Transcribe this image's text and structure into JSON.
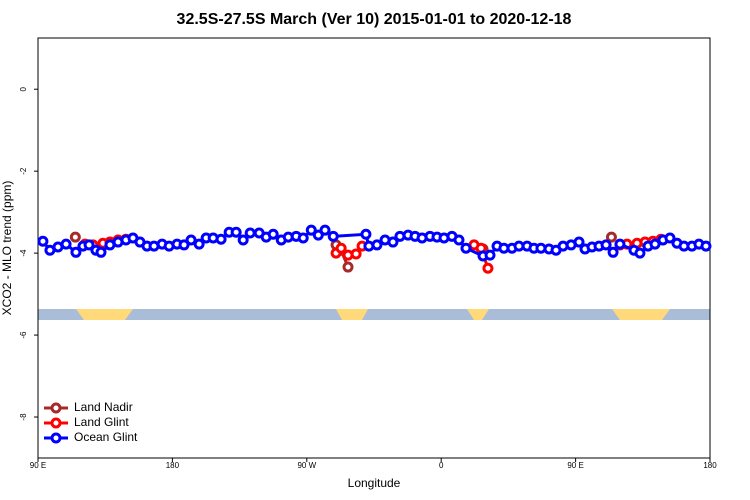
{
  "chart_data": {
    "type": "line",
    "title": "32.5S-27.5S March (Ver 10)   2015-01-01 to 2020-12-18",
    "x_label": "Longitude",
    "y_label": "XCO2 - MLO trend (ppm)",
    "xlim": [
      90,
      540
    ],
    "xticks": [
      {
        "value": 90,
        "label": "90 E"
      },
      180,
      {
        "value": 270,
        "label": "90 W"
      },
      {
        "value": 360,
        "label": "0"
      },
      {
        "value": 450,
        "label": "90 E"
      },
      {
        "value": 540,
        "label": "180"
      }
    ],
    "ylim": [
      -9,
      1.25
    ],
    "yticks": [
      0,
      -2,
      -4,
      -6,
      -8
    ],
    "legend": "bottom-left",
    "series": [
      {
        "name": "Land Nadir",
        "color": "#a52a2a",
        "x": [
          115,
          null,
          289.6,
          293,
          297.6,
          null,
          388,
          null,
          474
        ],
        "values": [
          -3.61,
          null,
          -3.8,
          -3.93,
          -4.34,
          null,
          -3.9,
          null,
          -3.61
        ]
      },
      {
        "name": "Land Glint",
        "color": "#ff0000",
        "x": [
          121.5,
          126.8,
          133.5,
          138.2,
          143.6,
          148.9,
          null,
          289.6,
          293,
          297.6,
          303,
          307,
          null,
          382,
          386.7,
          391.3,
          null,
          479.7,
          484.4,
          491.1,
          496.5,
          501.8,
          507.2
        ],
        "values": [
          -3.78,
          -3.8,
          -3.76,
          -3.73,
          -3.68,
          -3.66,
          null,
          -4.0,
          -3.88,
          -4.05,
          -4.02,
          -3.83,
          null,
          -3.8,
          -3.88,
          -4.37,
          null,
          -3.8,
          -3.78,
          -3.76,
          -3.73,
          -3.71,
          -3.66
        ]
      },
      {
        "name": "Ocean Glint",
        "color": "#0000ff",
        "x": [
          93.3,
          98,
          103.4,
          108.8,
          115.4,
          120.1,
          124.2,
          128.8,
          132.2,
          138.2,
          143.6,
          148.9,
          153.6,
          158.3,
          163,
          167.7,
          173.1,
          177.8,
          183.1,
          187.8,
          192.5,
          197.9,
          202.6,
          207.3,
          212.6,
          218,
          222.7,
          227.4,
          232.1,
          238.1,
          242.8,
          247.5,
          252.9,
          257.6,
          262.9,
          267.6,
          273,
          277.7,
          282.2,
          287.7,
          309.6,
          311.6,
          317,
          322.4,
          327.7,
          332.4,
          337.8,
          342.5,
          347.2,
          352.5,
          357.2,
          361.9,
          367.2,
          371.9,
          376.6,
          388,
          392.7,
          397.4,
          402,
          407.4,
          412.1,
          417.5,
          422.1,
          426.8,
          432.2,
          436.9,
          441.6,
          447,
          452.3,
          456.3,
          461,
          465.7,
          470.4,
          475.1,
          479.7,
          489.1,
          493.1,
          498.5,
          503.2,
          508.5,
          513.2,
          517.9,
          522.6,
          527.9,
          532.6,
          537.3
        ],
        "values": [
          -3.71,
          -3.93,
          -3.85,
          -3.78,
          -3.98,
          -3.83,
          -3.8,
          -3.93,
          -3.98,
          -3.8,
          -3.73,
          -3.68,
          -3.63,
          -3.73,
          -3.83,
          -3.83,
          -3.78,
          -3.83,
          -3.78,
          -3.8,
          -3.68,
          -3.78,
          -3.63,
          -3.63,
          -3.66,
          -3.49,
          -3.49,
          -3.68,
          -3.51,
          -3.51,
          -3.61,
          -3.54,
          -3.68,
          -3.61,
          -3.59,
          -3.63,
          -3.44,
          -3.56,
          -3.44,
          -3.59,
          -3.54,
          -3.83,
          -3.8,
          -3.68,
          -3.73,
          -3.59,
          -3.56,
          -3.59,
          -3.63,
          -3.59,
          -3.61,
          -3.63,
          -3.59,
          -3.68,
          -3.88,
          -4.07,
          -4.05,
          -3.83,
          -3.88,
          -3.88,
          -3.83,
          -3.83,
          -3.88,
          -3.88,
          -3.9,
          -3.93,
          -3.83,
          -3.8,
          -3.73,
          -3.9,
          -3.85,
          -3.83,
          -3.8,
          -3.98,
          -3.78,
          -3.93,
          -4.0,
          -3.83,
          -3.78,
          -3.68,
          -3.63,
          -3.76,
          -3.83,
          -3.83,
          -3.78,
          -3.83
        ]
      }
    ]
  }
}
